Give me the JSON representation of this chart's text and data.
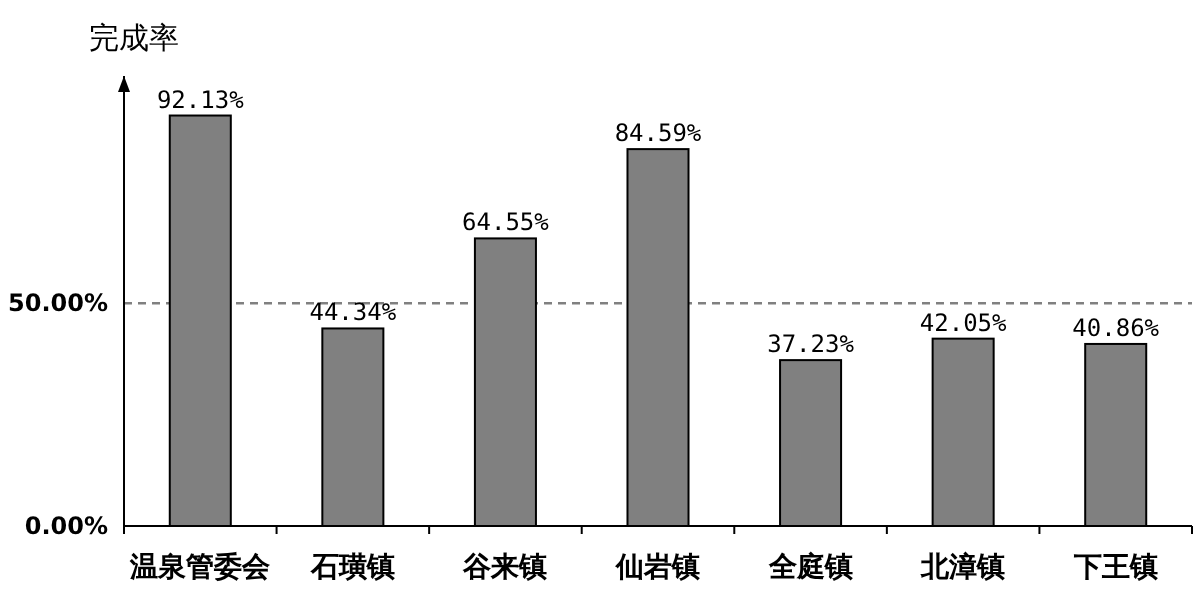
{
  "chart_data": {
    "type": "bar",
    "ylabel": "完成率",
    "categories": [
      "温泉管委会",
      "石璜镇",
      "谷来镇",
      "仙岩镇",
      "全庭镇",
      "北漳镇",
      "下王镇"
    ],
    "values": [
      92.13,
      44.34,
      64.55,
      84.59,
      37.23,
      42.05,
      40.86
    ],
    "value_labels": [
      "92.13%",
      "44.34%",
      "64.55%",
      "84.59%",
      "37.23%",
      "42.05%",
      "40.86%"
    ],
    "color": "#808080",
    "ylim": [
      0,
      101
    ],
    "yticks": [
      {
        "value": 0,
        "label": "0.00%"
      },
      {
        "value": 50,
        "label": "50.00%"
      }
    ],
    "ref_lines": [
      {
        "axis": "y",
        "value": 50,
        "line_style": "dashed",
        "color": "#808080"
      }
    ]
  }
}
